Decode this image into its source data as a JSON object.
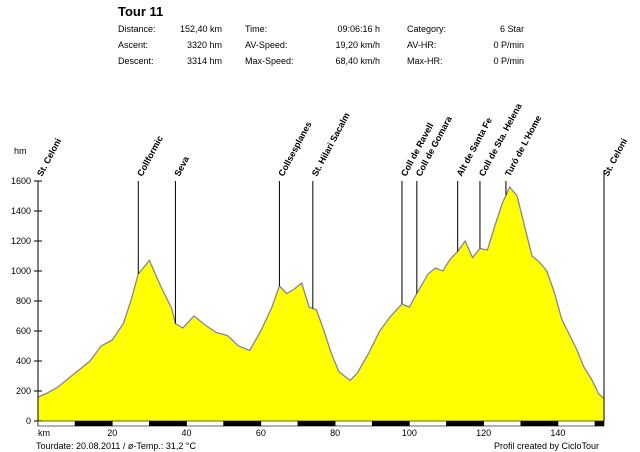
{
  "header": {
    "title": "Tour 11",
    "stats": [
      {
        "label": "Distance:",
        "value": "152,40 km"
      },
      {
        "label": "Ascent:",
        "value": "3320 hm"
      },
      {
        "label": "Descent:",
        "value": "3314 hm"
      },
      {
        "label": "Time:",
        "value": "09:06:16 h"
      },
      {
        "label": "AV-Speed:",
        "value": "19,20 km/h"
      },
      {
        "label": "Max-Speed:",
        "value": "68,40 km/h"
      },
      {
        "label": "Category:",
        "value": "6 Star"
      },
      {
        "label": "AV-HR:",
        "value": "0 P/min"
      },
      {
        "label": "Max-HR:",
        "value": "0 P/min"
      }
    ]
  },
  "footer": {
    "left": "Tourdate: 20.08.2011  /  ø-Temp.: 31,2 °C",
    "right": "Profil created by CicloTour"
  },
  "colors": {
    "fill": "#ffff00",
    "line": "#888888",
    "axis": "#000000"
  },
  "chart_data": {
    "type": "area",
    "xlabel": "km",
    "ylabel": "hm",
    "xlim": [
      0,
      152.4
    ],
    "ylim": [
      0,
      1600
    ],
    "xticks": [
      20,
      40,
      60,
      80,
      100,
      120,
      140
    ],
    "yticks": [
      0,
      200,
      400,
      600,
      800,
      1000,
      1200,
      1400,
      1600
    ],
    "profile": {
      "x": [
        0,
        2,
        5,
        8,
        11,
        14,
        17,
        20,
        23,
        25,
        27,
        30,
        33,
        36,
        37,
        39,
        42,
        45,
        48,
        51,
        54,
        57,
        60,
        63,
        65,
        67,
        69,
        71,
        73,
        75,
        77,
        79,
        81,
        84,
        86,
        89,
        92,
        95,
        98,
        100,
        102,
        105,
        107,
        109,
        111,
        113,
        115,
        117,
        119,
        121,
        123,
        125,
        127,
        129,
        131,
        133,
        135,
        137,
        139,
        141,
        143,
        145,
        147,
        149,
        151,
        152.4
      ],
      "y": [
        160,
        180,
        220,
        280,
        340,
        400,
        500,
        540,
        650,
        800,
        980,
        1070,
        900,
        750,
        650,
        620,
        700,
        640,
        590,
        570,
        500,
        470,
        600,
        760,
        900,
        850,
        880,
        920,
        760,
        740,
        600,
        450,
        330,
        270,
        320,
        450,
        600,
        700,
        780,
        760,
        850,
        980,
        1020,
        1000,
        1080,
        1130,
        1200,
        1090,
        1150,
        1140,
        1300,
        1450,
        1560,
        1500,
        1300,
        1100,
        1060,
        1000,
        860,
        680,
        580,
        480,
        360,
        280,
        180,
        150
      ]
    },
    "waypoints": [
      {
        "name": "St. Celoni",
        "km": 0
      },
      {
        "name": "Collformic",
        "km": 27
      },
      {
        "name": "Seva",
        "km": 37
      },
      {
        "name": "Collsesplanes",
        "km": 65
      },
      {
        "name": "St. Hilari Sacalm",
        "km": 74
      },
      {
        "name": "Coll de Ravell",
        "km": 98
      },
      {
        "name": "Coll de Gomara",
        "km": 102
      },
      {
        "name": "Alt de Santa Fe",
        "km": 113
      },
      {
        "name": "Coll de Sta. Helena",
        "km": 119
      },
      {
        "name": "Turó de L'Home",
        "km": 126
      },
      {
        "name": "St. Celoni",
        "km": 152.4
      }
    ]
  }
}
